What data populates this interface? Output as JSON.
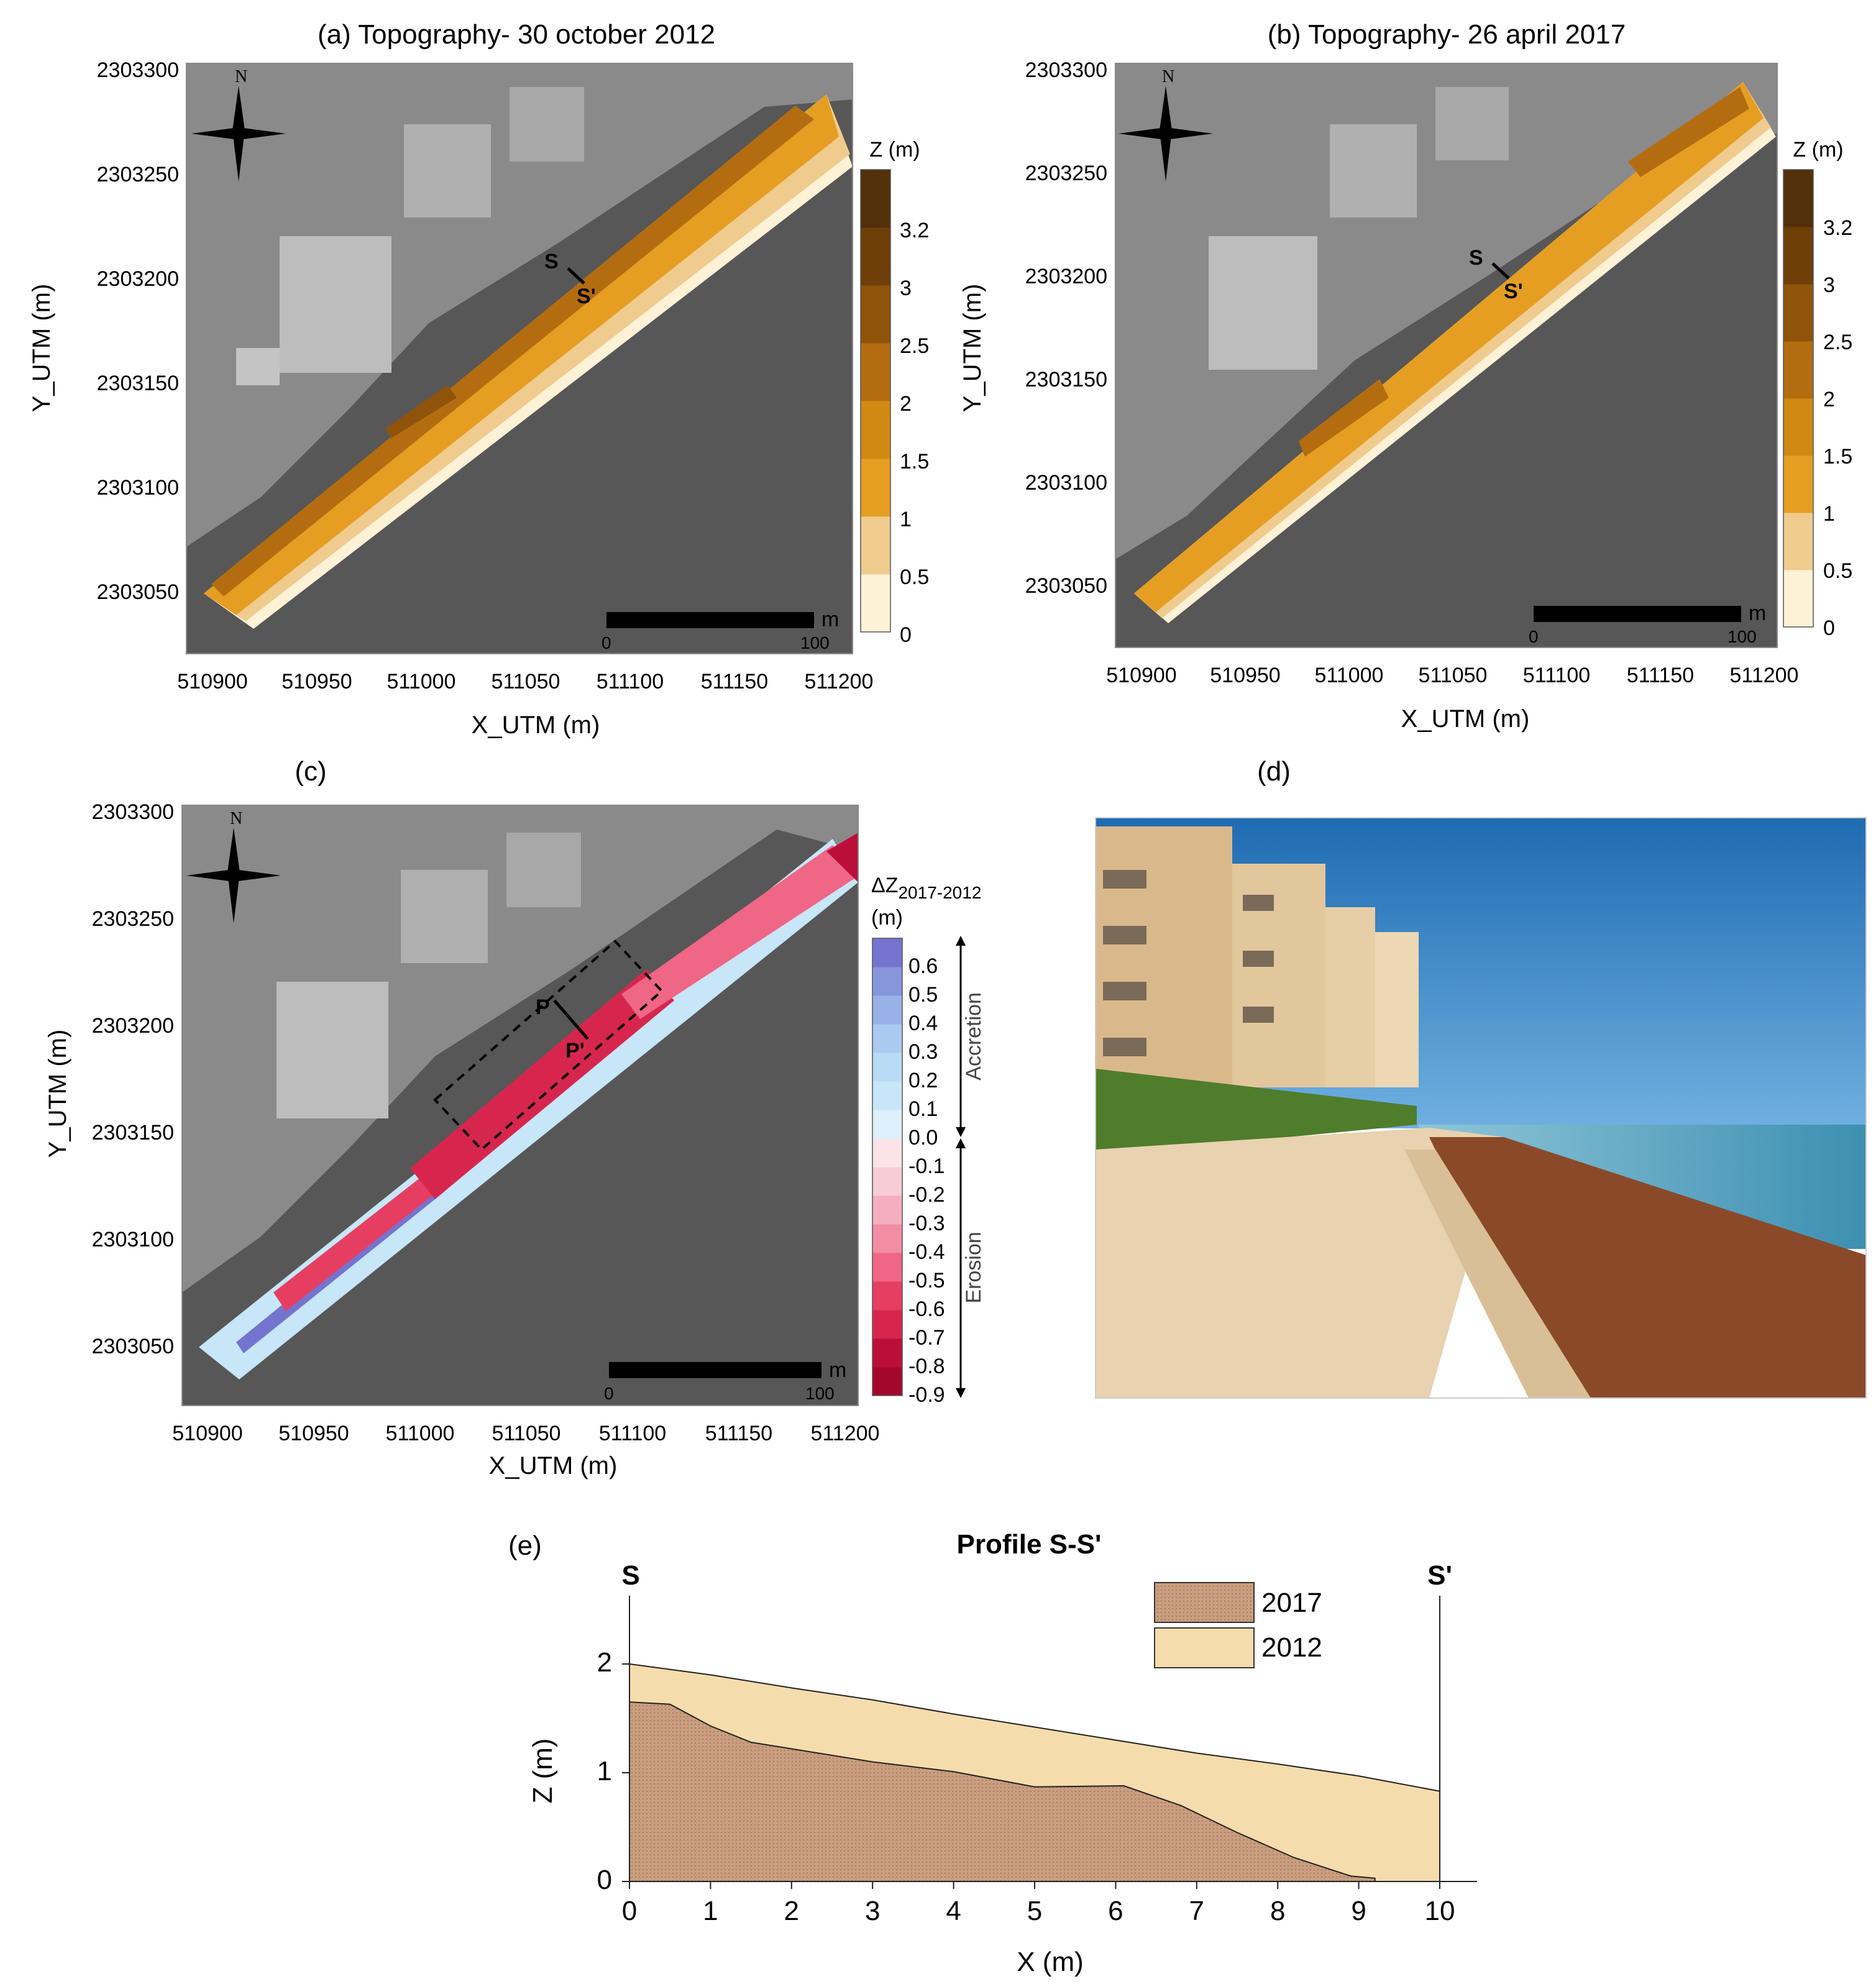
{
  "colors": {
    "topo": [
      "#fdf1d6",
      "#f0cb8e",
      "#e59e22",
      "#d08a14",
      "#b36d10",
      "#8f5309",
      "#6e3f08",
      "#52300a"
    ],
    "diff": [
      "#a3082c",
      "#bb0f3a",
      "#d7264e",
      "#e63e60",
      "#ef6686",
      "#f28ea4",
      "#f5aec0",
      "#f8ccd6",
      "#fbe3e8",
      "#def0fb",
      "#c7e6f8",
      "#b7dcf4",
      "#aacaf0",
      "#98b2e8",
      "#8696dc",
      "#7474cf"
    ],
    "profile_2017": "#c99e7f",
    "profile_2012": "#f5dcac"
  },
  "panel_a": {
    "title": "(a) Topography- 30 october 2012",
    "xticks": [
      "510900",
      "510950",
      "511000",
      "511050",
      "511100",
      "511150",
      "511200"
    ],
    "yticks": [
      "2303300",
      "2303250",
      "2303200",
      "2303150",
      "2303100",
      "2303050"
    ],
    "xlabel": "X_UTM (m)",
    "ylabel": "Y_UTM (m)",
    "marker_s": "S",
    "marker_s2": "S'",
    "north": "N",
    "colorbar_title": "Z (m)",
    "colorbar_ticks": [
      "3.2",
      "3",
      "2.5",
      "2",
      "1.5",
      "1",
      "0.5",
      "0"
    ],
    "scalebar_unit": "m",
    "scalebar_start": "0",
    "scalebar_end": "100"
  },
  "panel_b": {
    "title": "(b) Topography- 26 april 2017",
    "xticks": [
      "510900",
      "510950",
      "511000",
      "511050",
      "511100",
      "511150",
      "511200"
    ],
    "yticks": [
      "2303300",
      "2303250",
      "2303200",
      "2303150",
      "2303100",
      "2303050"
    ],
    "xlabel": "X_UTM (m)",
    "ylabel": "Y_UTM (m)",
    "marker_s": "S",
    "marker_s2": "S'",
    "north": "N",
    "colorbar_title": "Z (m)",
    "colorbar_ticks": [
      "3.2",
      "3",
      "2.5",
      "2",
      "1.5",
      "1",
      "0.5",
      "0"
    ],
    "scalebar_unit": "m",
    "scalebar_start": "0",
    "scalebar_end": "100"
  },
  "panel_c": {
    "title": "(c)",
    "xticks": [
      "510900",
      "510950",
      "511000",
      "511050",
      "511100",
      "511150",
      "511200"
    ],
    "yticks": [
      "2303300",
      "2303250",
      "2303200",
      "2303150",
      "2303100",
      "2303050"
    ],
    "xlabel": "X_UTM (m)",
    "ylabel": "Y_UTM (m)",
    "marker_p": "P",
    "marker_p2": "P'",
    "north": "N",
    "colorbar_title_main": "ΔZ",
    "colorbar_title_sub": "2017-2012",
    "colorbar_unit": "(m)",
    "colorbar_ticks": [
      "0.6",
      "0.5",
      "0.4",
      "0.3",
      "0.2",
      "0.1",
      "0.0",
      "-0.1",
      "-0.2",
      "-0.3",
      "-0.4",
      "-0.5",
      "-0.6",
      "-0.7",
      "-0.8",
      "-0.9"
    ],
    "accretion_label": "Accretion",
    "erosion_label": "Erosion",
    "scalebar_unit": "m",
    "scalebar_start": "0",
    "scalebar_end": "100"
  },
  "panel_d": {
    "title": "(d)"
  },
  "panel_e": {
    "label": "(e)"
  },
  "chart_data": [
    {
      "type": "area",
      "title": "Profile S-S'",
      "xlabel": "X (m)",
      "ylabel": "Z (m)",
      "xlim": [
        0,
        10
      ],
      "ylim": [
        0,
        2
      ],
      "xticks": [
        "0",
        "1",
        "2",
        "3",
        "4",
        "5",
        "6",
        "7",
        "8",
        "9",
        "10"
      ],
      "yticks": [
        "0",
        "1",
        "2"
      ],
      "start_label": "S",
      "end_label": "S'",
      "legend_position": "top-right",
      "series": [
        {
          "name": "2012",
          "points": [
            [
              0,
              2.0
            ],
            [
              1,
              1.9
            ],
            [
              2,
              1.78
            ],
            [
              3,
              1.67
            ],
            [
              4,
              1.54
            ],
            [
              5,
              1.42
            ],
            [
              6,
              1.3
            ],
            [
              7,
              1.18
            ],
            [
              8,
              1.08
            ],
            [
              9,
              0.97
            ],
            [
              10,
              0.83
            ]
          ]
        },
        {
          "name": "2017",
          "points": [
            [
              0,
              1.65
            ],
            [
              0.5,
              1.63
            ],
            [
              1,
              1.43
            ],
            [
              1.5,
              1.28
            ],
            [
              2,
              1.22
            ],
            [
              3,
              1.1
            ],
            [
              4,
              1.01
            ],
            [
              5,
              0.87
            ],
            [
              6.1,
              0.88
            ],
            [
              6.8,
              0.7
            ],
            [
              7.5,
              0.45
            ],
            [
              8.2,
              0.22
            ],
            [
              8.9,
              0.05
            ],
            [
              9.2,
              0.03
            ],
            [
              9.2,
              0
            ]
          ]
        }
      ]
    }
  ]
}
